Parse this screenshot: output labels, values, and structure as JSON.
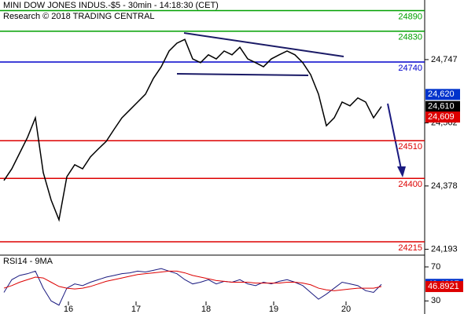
{
  "chart_data": [
    {
      "type": "line",
      "title": "MINI DOW JONES INDUS.-$5 - 30min - 14:18:30 (CET)",
      "subtitle": "Research © 2018 TRADING CENTRAL",
      "x": [
        0.5,
        1.5,
        2.5,
        3.5,
        4.5,
        5.5,
        6.5,
        7.5,
        8.5,
        9.5,
        10.5,
        11.5,
        12.5,
        13.5,
        14.5,
        15.5,
        16.5,
        17.5,
        18.5,
        19.5,
        20.5,
        21.5,
        22.5,
        23.5,
        24.5,
        25.5,
        26.5,
        27.5,
        28.5,
        29.5,
        30.5,
        31.5,
        32.5,
        33.5,
        34.5,
        35.5,
        36.5,
        37.5,
        38.5,
        39.5,
        40.5,
        41.5,
        42.5,
        43.5,
        44.5,
        45.5,
        46.5,
        47.5,
        48.5
      ],
      "series": [
        {
          "color": "#000000",
          "values": [
            24394,
            24428,
            24474,
            24520,
            24577,
            24417,
            24337,
            24279,
            24405,
            24440,
            24428,
            24463,
            24486,
            24508,
            24543,
            24577,
            24600,
            24623,
            24646,
            24692,
            24726,
            24772,
            24795,
            24806,
            24749,
            24738,
            24761,
            24749,
            24772,
            24761,
            24783,
            24749,
            24738,
            24726,
            24749,
            24761,
            24772,
            24761,
            24738,
            24703,
            24646,
            24554,
            24577,
            24623,
            24612,
            24635,
            24623,
            24577,
            24610
          ]
        }
      ],
      "xlim": [
        0,
        54
      ],
      "xticks": [
        {
          "value": 8.7,
          "label": "16"
        },
        {
          "value": 17.3,
          "label": "17"
        },
        {
          "value": 26.2,
          "label": "18"
        },
        {
          "value": 34.8,
          "label": "19"
        },
        {
          "value": 44.0,
          "label": "20"
        }
      ],
      "ylim": [
        24176,
        24921
      ],
      "yticks": [
        {
          "value": 24747,
          "label": "24,747"
        },
        {
          "value": 24562,
          "label": "24,562"
        },
        {
          "value": 24378,
          "label": "24,378"
        },
        {
          "value": 24193,
          "label": "24,193"
        }
      ],
      "levels": [
        {
          "value": 24890,
          "color": "#00a000"
        },
        {
          "value": 24830,
          "color": "#00a000"
        },
        {
          "value": 24740,
          "color": "#0000cc"
        },
        {
          "value": 24510,
          "color": "#dd0000"
        },
        {
          "value": 24400,
          "color": "#dd0000"
        },
        {
          "value": 24215,
          "color": "#dd0000"
        }
      ],
      "price_boxes": [
        {
          "value": 24620,
          "label": "24,620",
          "color": "#0033cc"
        },
        {
          "value": 24610,
          "label": "24,610",
          "color": "#000000"
        },
        {
          "value": 24609,
          "label": "24,609",
          "color": "#dd0000"
        }
      ]
    },
    {
      "type": "line",
      "title": "RSI14 - 9MA",
      "x": [
        0.5,
        1.5,
        2.5,
        3.5,
        4.5,
        5.5,
        6.5,
        7.5,
        8.5,
        9.5,
        10.5,
        11.5,
        12.5,
        13.5,
        14.5,
        15.5,
        16.5,
        17.5,
        18.5,
        19.5,
        20.5,
        21.5,
        22.5,
        23.5,
        24.5,
        25.5,
        26.5,
        27.5,
        28.5,
        29.5,
        30.5,
        31.5,
        32.5,
        33.5,
        34.5,
        35.5,
        36.5,
        37.5,
        38.5,
        39.5,
        40.5,
        41.5,
        42.5,
        43.5,
        44.5,
        45.5,
        46.5,
        47.5,
        48.5
      ],
      "series": [
        {
          "color": "#1a1a80",
          "values": [
            40,
            55,
            60,
            62,
            65,
            45,
            30,
            25,
            45,
            50,
            48,
            52,
            55,
            58,
            60,
            62,
            63,
            65,
            64,
            66,
            68,
            65,
            62,
            55,
            50,
            52,
            55,
            50,
            53,
            52,
            55,
            50,
            48,
            52,
            50,
            53,
            55,
            52,
            48,
            40,
            32,
            38,
            45,
            52,
            50,
            48,
            42,
            40,
            49.4897
          ],
          "box_color": "#0033cc"
        },
        {
          "color": "#dd0000",
          "values": [
            45,
            48,
            52,
            55,
            58,
            57,
            52,
            47,
            45,
            44,
            45,
            47,
            50,
            53,
            55,
            57,
            59,
            61,
            62,
            63,
            64,
            65,
            65,
            63,
            60,
            58,
            56,
            54,
            53,
            52,
            52,
            52,
            51,
            51,
            51,
            51,
            52,
            52,
            51,
            49,
            45,
            43,
            42,
            43,
            44,
            45,
            45,
            45,
            46.8921
          ],
          "box_color": "#dd0000"
        }
      ],
      "xlim": [
        0,
        54
      ],
      "ylim": [
        22,
        82
      ],
      "yticks": [
        70,
        30
      ]
    }
  ]
}
